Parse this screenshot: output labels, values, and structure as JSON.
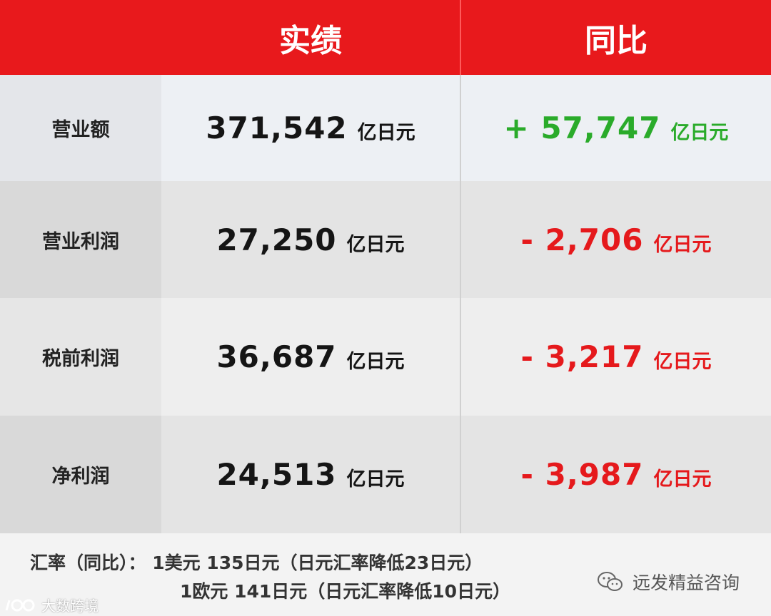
{
  "header": {
    "col_actual": "实绩",
    "col_yoy": "同比"
  },
  "rows": [
    {
      "label": "营业额",
      "value": "371,542",
      "unit": "亿日元",
      "change": "+ 57,747",
      "change_unit": "亿日元",
      "change_color": "#2aab2a"
    },
    {
      "label": "营业利润",
      "value": "27,250",
      "unit": "亿日元",
      "change": "- 2,706",
      "change_unit": "亿日元",
      "change_color": "#e5191c"
    },
    {
      "label": "税前利润",
      "value": "36,687",
      "unit": "亿日元",
      "change": "- 3,217",
      "change_unit": "亿日元",
      "change_color": "#e5191c"
    },
    {
      "label": "净利润",
      "value": "24,513",
      "unit": "亿日元",
      "change": "- 3,987",
      "change_unit": "亿日元",
      "change_color": "#e5191c"
    }
  ],
  "footer": {
    "line1": "汇率（同比）： 1美元 135日元（日元汇率降低23日元）",
    "line2": "1欧元 141日元（日元汇率降低10日元）"
  },
  "watermarks": {
    "right": "远发精益咨询",
    "left": "大数跨境"
  },
  "colors": {
    "header_red": "#e8191c",
    "positive": "#2aab2a",
    "negative": "#e5191c"
  }
}
